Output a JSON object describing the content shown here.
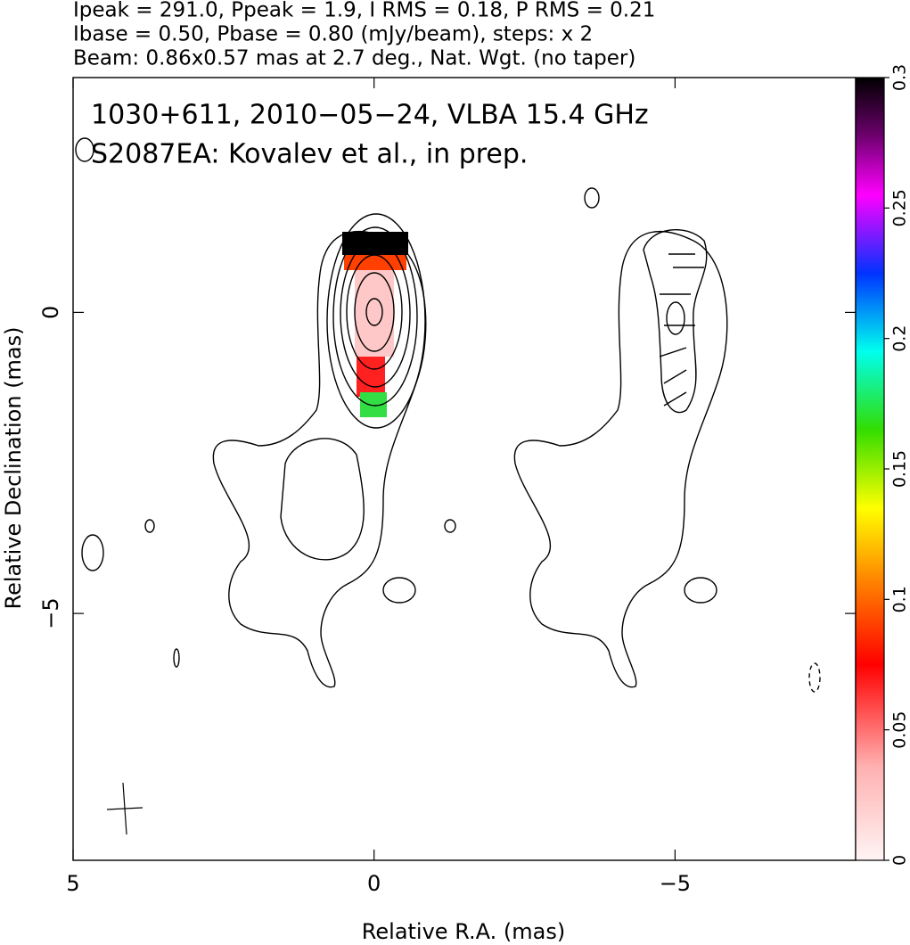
{
  "chart_data": {
    "type": "map",
    "header": [
      "Ipeak = 291.0, Ppeak = 1.9, I RMS = 0.18, P RMS = 0.21",
      "Ibase = 0.50, Pbase = 0.80 (mJy/beam), steps: x 2",
      "Beam: 0.86x0.57 mas at 2.7 deg., Nat. Wgt. (no taper)"
    ],
    "title": [
      "1030+611, 2010−05−24, VLBA 15.4 GHz",
      "S2087EA: Kovalev et al., in prep."
    ],
    "xlabel": "Relative R.A. (mas)",
    "ylabel": "Relative Declination (mas)",
    "xlim": [
      5,
      -8
    ],
    "ylim": [
      3.9,
      -9.1
    ],
    "xticks": [
      5,
      0,
      {
        "value": -5,
        "label": "−5"
      }
    ],
    "yticks": [
      0,
      {
        "value": -5,
        "label": "−5"
      }
    ],
    "colorbar_lim": [
      0,
      0.3
    ],
    "colorbar_ticks": [
      0,
      0.05,
      0.1,
      0.15,
      0.2,
      0.25,
      0.3
    ]
  }
}
